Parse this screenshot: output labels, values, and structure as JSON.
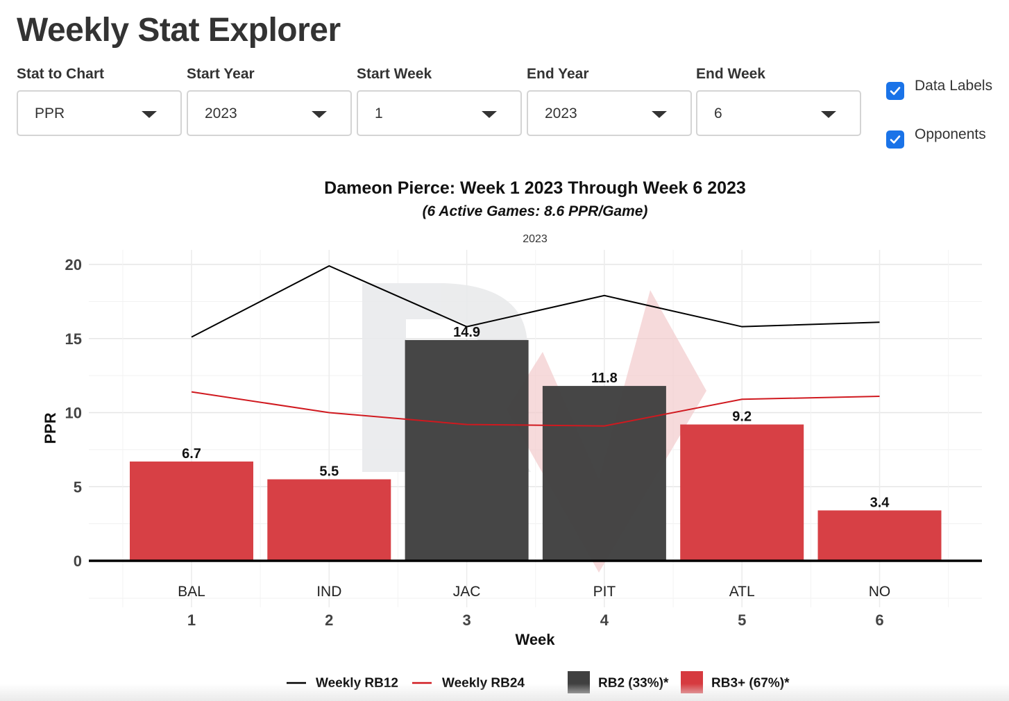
{
  "page": {
    "title": "Weekly Stat Explorer"
  },
  "controls": [
    {
      "label": "Stat to Chart",
      "value": "PPR"
    },
    {
      "label": "Start Year",
      "value": "2023"
    },
    {
      "label": "Start Week",
      "value": "1"
    },
    {
      "label": "End Year",
      "value": "2023"
    },
    {
      "label": "End Week",
      "value": "6"
    }
  ],
  "checkboxes": [
    {
      "label": "Data Labels",
      "checked": true
    },
    {
      "label": "Opponents",
      "checked": true
    }
  ],
  "chart_data": {
    "type": "bar",
    "title": "Dameon Pierce: Week 1 2023 Through Week 6 2023",
    "subtitle": "(6 Active Games: 8.6 PPR/Game)",
    "facet_label": "2023",
    "xlabel": "Week",
    "ylabel": "PPR",
    "ylim": [
      0,
      20
    ],
    "yticks": [
      0,
      5,
      10,
      15,
      20
    ],
    "grid": true,
    "legend_position": "bottom",
    "weeks": [
      1,
      2,
      3,
      4,
      5,
      6
    ],
    "opponents": [
      "BAL",
      "IND",
      "JAC",
      "PIT",
      "ATL",
      "NO"
    ],
    "values": [
      6.7,
      5.5,
      14.9,
      11.8,
      9.2,
      3.4
    ],
    "data_labels": [
      "6.7",
      "5.5",
      "14.9",
      "11.8",
      "9.2",
      "3.4"
    ],
    "tiers": [
      "RB3+ (67%)*",
      "RB3+ (67%)*",
      "RB2 (33%)*",
      "RB2 (33%)*",
      "RB3+ (67%)*",
      "RB3+ (67%)*"
    ],
    "lines": [
      {
        "name": "Weekly RB12",
        "color": "#000000",
        "values": [
          15.1,
          19.9,
          15.8,
          17.9,
          15.8,
          16.1
        ]
      },
      {
        "name": "Weekly RB24",
        "color": "#d0191f",
        "values": [
          11.4,
          10.0,
          9.2,
          9.1,
          10.9,
          11.1
        ]
      }
    ],
    "bar_legend": [
      {
        "name": "RB2 (33%)*",
        "color": "#404040"
      },
      {
        "name": "RB3+ (67%)*",
        "color": "#d63a3f"
      }
    ]
  }
}
